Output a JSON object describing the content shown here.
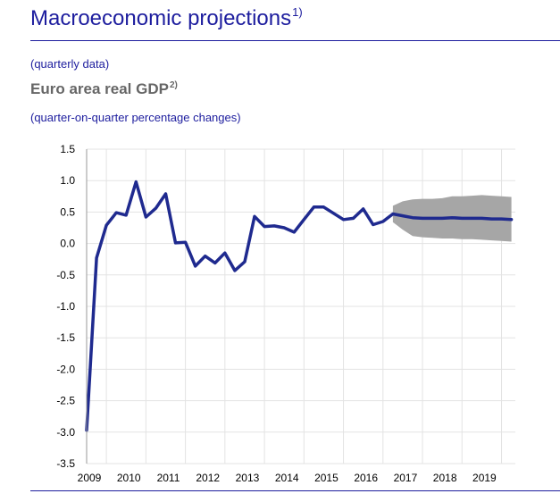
{
  "header": {
    "title": "Macroeconomic projections",
    "title_note": "1)",
    "frequency": "(quarterly data)",
    "chart_title": "Euro area real GDP",
    "chart_title_note": "2)",
    "chart_subtitle": "(quarter-on-quarter percentage changes)"
  },
  "colors": {
    "accent": "#1d1d9e",
    "line": "#1f2a8f",
    "band": "#a6a6a6",
    "grid": "#e3e3e3"
  },
  "chart_data": {
    "type": "line",
    "title": "Euro area real GDP",
    "xlabel": "",
    "ylabel": "",
    "ylim": [
      -3.5,
      1.5
    ],
    "xlim": [
      2009.0,
      2019.85
    ],
    "yticks": [
      1.5,
      1.0,
      0.5,
      0.0,
      -0.5,
      -1.0,
      -1.5,
      -2.0,
      -2.5,
      -3.0,
      -3.5
    ],
    "ytick_labels": [
      "1.5",
      "1.0",
      "0.5",
      "0.0",
      "-0.5",
      "-1.0",
      "-1.5",
      "-2.0",
      "-2.5",
      "-3.0",
      "-3.5"
    ],
    "xtick_labels": [
      "2009",
      "2010",
      "2011",
      "2012",
      "2013",
      "2014",
      "2015",
      "2016",
      "2017",
      "2018",
      "2019"
    ],
    "grid": true,
    "series": [
      {
        "name": "Euro area real GDP",
        "x": [
          2009.0,
          2009.25,
          2009.5,
          2009.75,
          2010.0,
          2010.25,
          2010.5,
          2010.75,
          2011.0,
          2011.25,
          2011.5,
          2011.75,
          2012.0,
          2012.25,
          2012.5,
          2012.75,
          2013.0,
          2013.25,
          2013.5,
          2013.75,
          2014.0,
          2014.25,
          2014.5,
          2014.75,
          2015.0,
          2015.25,
          2015.5,
          2015.75,
          2016.0,
          2016.25,
          2016.5,
          2016.75,
          2017.0,
          2017.25,
          2017.5,
          2017.75,
          2018.0,
          2018.25,
          2018.5,
          2018.75,
          2019.0,
          2019.25,
          2019.5,
          2019.75
        ],
        "values": [
          -2.97,
          -0.23,
          0.29,
          0.49,
          0.45,
          0.98,
          0.42,
          0.56,
          0.79,
          0.01,
          0.02,
          -0.36,
          -0.2,
          -0.31,
          -0.15,
          -0.43,
          -0.29,
          0.43,
          0.27,
          0.28,
          0.25,
          0.18,
          0.38,
          0.58,
          0.58,
          0.48,
          0.38,
          0.4,
          0.55,
          0.3,
          0.35,
          0.47,
          0.44,
          0.41,
          0.4,
          0.4,
          0.4,
          0.41,
          0.4,
          0.4,
          0.4,
          0.39,
          0.39,
          0.38
        ]
      }
    ],
    "projection_range": {
      "name": "Projection range",
      "x": [
        2016.75,
        2017.0,
        2017.25,
        2017.5,
        2017.75,
        2018.0,
        2018.25,
        2018.5,
        2018.75,
        2019.0,
        2019.25,
        2019.5,
        2019.75
      ],
      "lower": [
        0.34,
        0.22,
        0.12,
        0.1,
        0.09,
        0.08,
        0.08,
        0.07,
        0.07,
        0.06,
        0.05,
        0.04,
        0.03
      ],
      "upper": [
        0.6,
        0.67,
        0.7,
        0.71,
        0.71,
        0.72,
        0.75,
        0.75,
        0.76,
        0.77,
        0.76,
        0.75,
        0.74
      ]
    }
  }
}
